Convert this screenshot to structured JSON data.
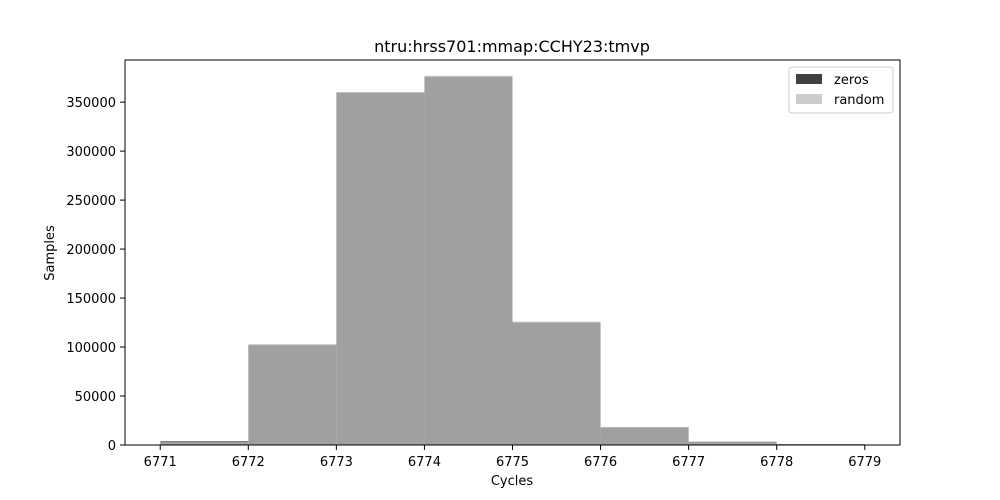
{
  "chart_data": {
    "type": "bar",
    "title": "ntru:hrss701:mmap:CCHY23:tmvp",
    "xlabel": "Cycles",
    "ylabel": "Samples",
    "xlim": [
      6770.6,
      6779.4
    ],
    "ylim": [
      0,
      393000
    ],
    "xticks": [
      6771,
      6772,
      6773,
      6774,
      6775,
      6776,
      6777,
      6778,
      6779
    ],
    "yticks": [
      0,
      50000,
      100000,
      150000,
      200000,
      250000,
      300000,
      350000
    ],
    "bin_edges": [
      6771,
      6772,
      6773,
      6774,
      6775,
      6776,
      6777,
      6778,
      6779
    ],
    "series": [
      {
        "name": "zeros",
        "color": "#404040",
        "values": [
          4000,
          102000,
          360000,
          376000,
          125000,
          18000,
          3500,
          1000
        ]
      },
      {
        "name": "random",
        "color": "#cccccc",
        "values": [
          3500,
          103000,
          360000,
          377000,
          126000,
          18500,
          3600,
          900
        ]
      }
    ],
    "overlap_color": "#a0a0a0",
    "legend_position": "top-right",
    "grid": false
  }
}
